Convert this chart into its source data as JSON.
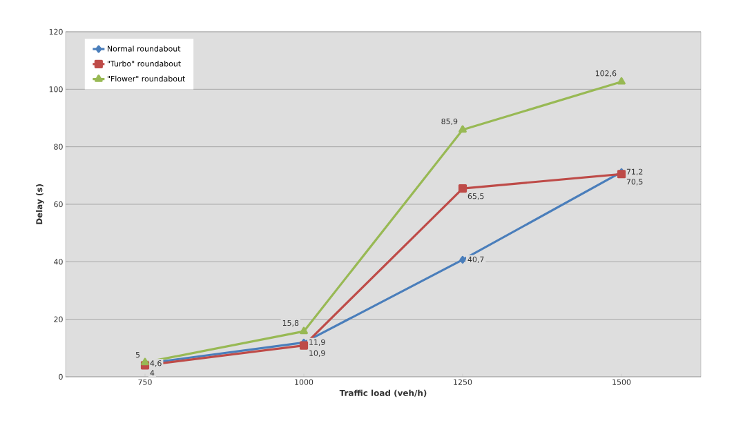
{
  "chart_data": {
    "type": "line",
    "xlabel": "Traffic load (veh/h)",
    "ylabel": "Delay (s)",
    "categories": [
      "750",
      "1000",
      "1250",
      "1500"
    ],
    "ylim": [
      0,
      120
    ],
    "yticks": [
      0,
      20,
      40,
      60,
      80,
      100,
      120
    ],
    "grid": "y",
    "legend": "top left",
    "series": [
      {
        "name": "Normal roundabout",
        "color": "#4a7ebb",
        "marker": "diamond",
        "values": [
          4.6,
          11.9,
          40.7,
          71.2
        ],
        "value_labels": [
          "4,6",
          "11,9",
          "40,7",
          "71,2"
        ]
      },
      {
        "name": "\"Turbo\" roundabout",
        "color": "#be4b48",
        "marker": "square",
        "values": [
          4,
          10.9,
          65.5,
          70.5
        ],
        "value_labels": [
          "4",
          "10,9",
          "65,5",
          "70,5"
        ]
      },
      {
        "name": "\"Flower\" roundabout",
        "color": "#98b954",
        "marker": "triangle",
        "values": [
          5,
          15.8,
          85.9,
          102.6
        ],
        "value_labels": [
          "5",
          "15,8",
          "85,9",
          "102,6"
        ]
      }
    ]
  }
}
